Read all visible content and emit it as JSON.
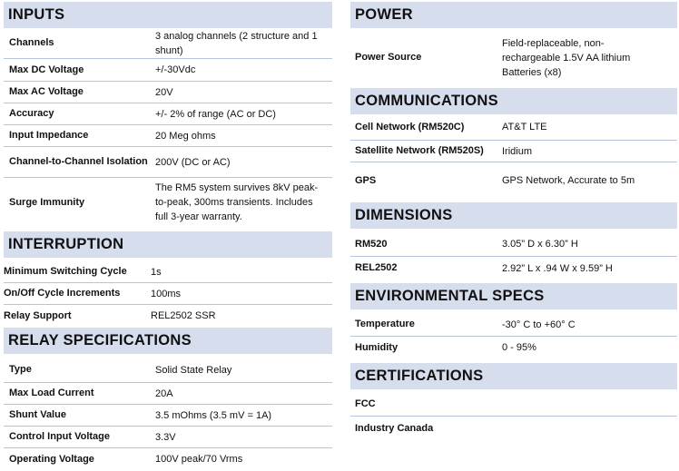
{
  "left": [
    {
      "title": "INPUTS",
      "rows": [
        {
          "label": "Channels",
          "value": "3 analog channels (2 structure and 1 shunt)"
        },
        {
          "label": "Max DC Voltage",
          "value": "+/-30Vdc"
        },
        {
          "label": "Max AC Voltage",
          "value": "20V"
        },
        {
          "label": "Accuracy",
          "value": "+/- 2% of range (AC or DC)"
        },
        {
          "label": "Input Impedance",
          "value": "20 Meg ohms"
        },
        {
          "label": "Channel-to-Channel Isolation",
          "value": "200V (DC or AC)"
        },
        {
          "label": "Surge Immunity",
          "value": "The RM5 system survives 8kV peak-to-peak, 300ms transients. Includes full 3-year warranty."
        }
      ]
    },
    {
      "title": "INTERRUPTION",
      "rows": [
        {
          "label": "Minimum Switching Cycle",
          "value": "1s"
        },
        {
          "label": "On/Off Cycle Increments",
          "value": "100ms"
        },
        {
          "label": "Relay Support",
          "value": "REL2502 SSR"
        }
      ]
    },
    {
      "title": "RELAY SPECIFICATIONS",
      "rows": [
        {
          "label": "Type",
          "value": "Solid State Relay"
        },
        {
          "label": "Max Load Current",
          "value": "20A"
        },
        {
          "label": "Shunt Value",
          "value": "3.5 mOhms (3.5 mV = 1A)"
        },
        {
          "label": "Control Input Voltage",
          "value": "3.3V"
        },
        {
          "label": "Operating Voltage",
          "value": "100V peak/70 Vrms"
        }
      ]
    }
  ],
  "right": [
    {
      "title": "POWER",
      "rows": [
        {
          "label": "Power Source",
          "value": "Field-replaceable, non-rechargeable 1.5V AA lithium Batteries (x8)"
        }
      ]
    },
    {
      "title": "COMMUNICATIONS",
      "rows": [
        {
          "label": "Cell Network (RM520C)",
          "value": "AT&T LTE"
        },
        {
          "label": "Satellite Network (RM520S)",
          "value": "Iridium"
        },
        {
          "label": "GPS",
          "value": "GPS Network, Accurate to 5m"
        }
      ]
    },
    {
      "title": "DIMENSIONS",
      "rows": [
        {
          "label": "RM520",
          "value": "3.05” D x 6.30” H"
        },
        {
          "label": "REL2502",
          "value": "2.92” L x .94 W x 9.59” H"
        }
      ]
    },
    {
      "title": "ENVIRONMENTAL SPECS",
      "rows": [
        {
          "label": "Temperature",
          "value": "-30° C to +60° C"
        },
        {
          "label": "Humidity",
          "value": "0 - 95%"
        }
      ]
    },
    {
      "title": "CERTIFICATIONS",
      "rows": [
        {
          "label": "FCC",
          "value": ""
        },
        {
          "label": "Industry Canada",
          "value": ""
        }
      ]
    }
  ]
}
